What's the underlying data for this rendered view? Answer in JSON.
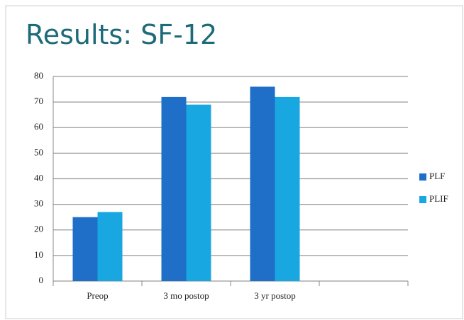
{
  "chart_data": {
    "type": "bar",
    "title": "Results: SF-12",
    "categories": [
      "Preop",
      "3 mo postop",
      "3 yr postop",
      null
    ],
    "series": [
      {
        "name": "PLF",
        "color": "#1f6fc9",
        "values": [
          25,
          72,
          76,
          null
        ]
      },
      {
        "name": "PLIF",
        "color": "#19a7e2",
        "values": [
          27,
          69,
          72,
          null
        ]
      }
    ],
    "ylim": [
      0,
      80
    ],
    "yticks": [
      0,
      10,
      20,
      30,
      40,
      50,
      60,
      70,
      80
    ],
    "grid": true,
    "legend": "right"
  }
}
